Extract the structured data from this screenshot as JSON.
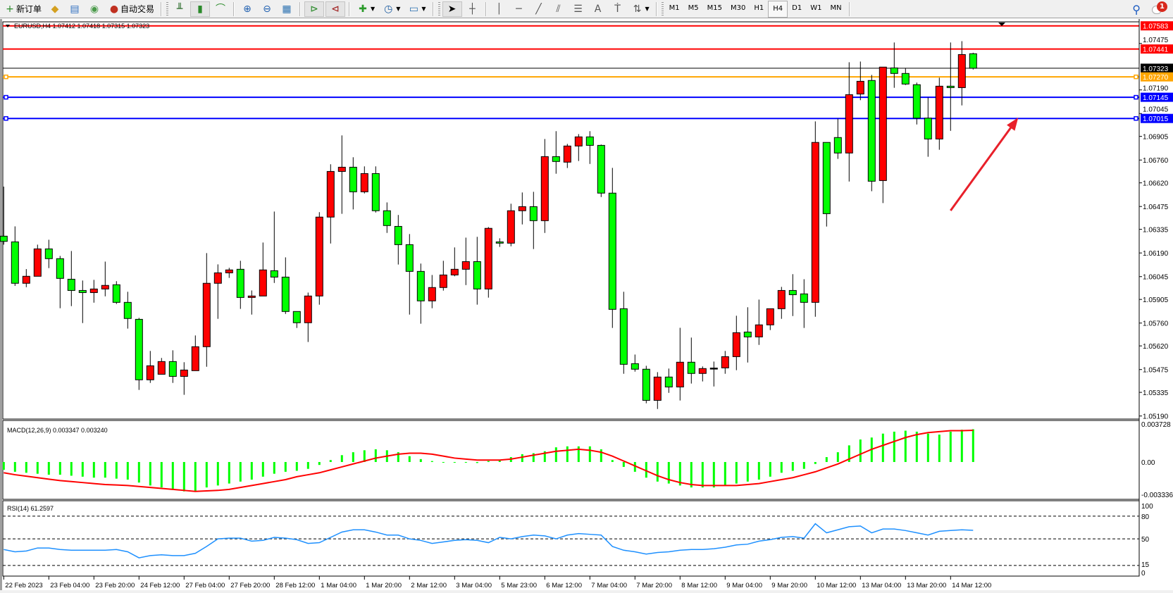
{
  "toolbar": {
    "new_order": "新订单",
    "auto_trading": "自动交易",
    "timeframes": [
      "M1",
      "M5",
      "M15",
      "M30",
      "H1",
      "H4",
      "D1",
      "W1",
      "MN"
    ],
    "active_timeframe": "H4",
    "notification_count": "1"
  },
  "chart": {
    "header": "EURUSD,H4  1.07412 1.07418 1.07315 1.07323",
    "macd_label": "MACD(12,26,9) 0.003347 0.003240",
    "rsi_label": "RSI(14) 61.2597",
    "colors": {
      "bull": "#ff0000",
      "bear": "#00ff00",
      "rsi": "#1e90ff",
      "macd_hist": "#00ff00",
      "macd_signal": "#ff0000",
      "arrow": "#e8202a"
    }
  },
  "chart_data": [
    {
      "type": "candlestick",
      "symbol": "EURUSD",
      "timeframe": "H4",
      "ylim": [
        1.0519,
        1.07583
      ],
      "price_ticks": [
        "1.07475",
        "1.07190",
        "1.07045",
        "1.06905",
        "1.06760",
        "1.06620",
        "1.06475",
        "1.06335",
        "1.06190",
        "1.06045",
        "1.05905",
        "1.05760",
        "1.05620",
        "1.05475",
        "1.05335",
        "1.05190"
      ],
      "time_labels": [
        "22 Feb 2023",
        "23 Feb 04:00",
        "23 Feb 20:00",
        "24 Feb 12:00",
        "27 Feb 04:00",
        "27 Feb 20:00",
        "28 Feb 12:00",
        "1 Mar 04:00",
        "1 Mar 20:00",
        "2 Mar 12:00",
        "3 Mar 04:00",
        "5 Mar 23:00",
        "6 Mar 12:00",
        "7 Mar 04:00",
        "7 Mar 20:00",
        "8 Mar 12:00",
        "9 Mar 04:00",
        "9 Mar 20:00",
        "10 Mar 12:00",
        "13 Mar 04:00",
        "13 Mar 20:00",
        "14 Mar 12:00"
      ],
      "ohlc": [
        [
          1.06293,
          1.06597,
          1.06241,
          1.06261
        ],
        [
          1.06258,
          1.06353,
          1.05988,
          1.06004
        ],
        [
          1.06004,
          1.06091,
          1.0598,
          1.06047
        ],
        [
          1.06047,
          1.06241,
          1.06047,
          1.06215
        ],
        [
          1.06215,
          1.06271,
          1.06097,
          1.06155
        ],
        [
          1.06155,
          1.06172,
          1.05851,
          1.06034
        ],
        [
          1.06029,
          1.06202,
          1.05864,
          1.0596
        ],
        [
          1.0596,
          1.06021,
          1.0576,
          1.05947
        ],
        [
          1.05947,
          1.06025,
          1.05885,
          1.05969
        ],
        [
          1.05969,
          1.06137,
          1.05924,
          1.05991
        ],
        [
          1.05995,
          1.06017,
          1.05877,
          1.05887
        ],
        [
          1.05887,
          1.05952,
          1.05726,
          1.05788
        ],
        [
          1.05783,
          1.05792,
          1.0535,
          1.05412
        ],
        [
          1.05412,
          1.05589,
          1.05393,
          1.05498
        ],
        [
          1.05446,
          1.05546,
          1.05446,
          1.05524
        ],
        [
          1.05524,
          1.05593,
          1.05393,
          1.05433
        ],
        [
          1.05433,
          1.0552,
          1.0532,
          1.05472
        ],
        [
          1.05468,
          1.05684,
          1.05468,
          1.05615
        ],
        [
          1.05615,
          1.06189,
          1.05492,
          1.06004
        ],
        [
          1.06004,
          1.0612,
          1.05786,
          1.06068
        ],
        [
          1.06068,
          1.06099,
          1.06037,
          1.06086
        ],
        [
          1.0609,
          1.06142,
          1.05847,
          1.05917
        ],
        [
          1.05917,
          1.0596,
          1.05812,
          1.05926
        ],
        [
          1.05926,
          1.06254,
          1.05926,
          1.06086
        ],
        [
          1.06081,
          1.06444,
          1.06006,
          1.06042
        ],
        [
          1.06042,
          1.06163,
          1.05816,
          1.05831
        ],
        [
          1.05831,
          1.05831,
          1.0573,
          1.05762
        ],
        [
          1.05762,
          1.05947,
          1.05644,
          1.05926
        ],
        [
          1.05926,
          1.0644,
          1.05873,
          1.0641
        ],
        [
          1.0641,
          1.06734,
          1.06248,
          1.0669
        ],
        [
          1.0669,
          1.06911,
          1.0643,
          1.06716
        ],
        [
          1.06716,
          1.06777,
          1.06457,
          1.06565
        ],
        [
          1.06565,
          1.06721,
          1.06555,
          1.06677
        ],
        [
          1.06677,
          1.06721,
          1.06438,
          1.06449
        ],
        [
          1.06449,
          1.065,
          1.06313,
          1.06358
        ],
        [
          1.06353,
          1.06423,
          1.06119,
          1.06241
        ],
        [
          1.06241,
          1.06306,
          1.05812,
          1.06077
        ],
        [
          1.06077,
          1.06125,
          1.05756,
          1.05896
        ],
        [
          1.05896,
          1.06055,
          1.05851,
          1.05978
        ],
        [
          1.05978,
          1.06142,
          1.05959,
          1.06055
        ],
        [
          1.06055,
          1.06224,
          1.06047,
          1.0609
        ],
        [
          1.0609,
          1.06284,
          1.05993,
          1.06137
        ],
        [
          1.06137,
          1.06289,
          1.05873,
          1.05969
        ],
        [
          1.05969,
          1.06349,
          1.05916,
          1.06341
        ],
        [
          1.06258,
          1.0628,
          1.06227,
          1.0625
        ],
        [
          1.0625,
          1.06492,
          1.06231,
          1.06449
        ],
        [
          1.06449,
          1.06561,
          1.06365,
          1.06474
        ],
        [
          1.06474,
          1.06565,
          1.06214,
          1.06388
        ],
        [
          1.06388,
          1.06889,
          1.06313,
          1.06781
        ],
        [
          1.06781,
          1.06937,
          1.06676,
          1.06751
        ],
        [
          1.06747,
          1.06859,
          1.06711,
          1.06846
        ],
        [
          1.06846,
          1.06919,
          1.06754,
          1.06902
        ],
        [
          1.06902,
          1.06937,
          1.06736,
          1.0685
        ],
        [
          1.0685,
          1.06855,
          1.06533,
          1.06557
        ],
        [
          1.06557,
          1.06712,
          1.0573,
          1.05844
        ],
        [
          1.05848,
          1.05952,
          1.05449,
          1.05507
        ],
        [
          1.05511,
          1.05567,
          1.05462,
          1.05477
        ],
        [
          1.05477,
          1.05498,
          1.05268,
          1.05286
        ],
        [
          1.05286,
          1.05459,
          1.05233,
          1.05429
        ],
        [
          1.05429,
          1.05481,
          1.05332,
          1.05368
        ],
        [
          1.05368,
          1.05731,
          1.05285,
          1.0552
        ],
        [
          1.0552,
          1.05671,
          1.05389,
          1.05451
        ],
        [
          1.05451,
          1.05494,
          1.05402,
          1.05481
        ],
        [
          1.05484,
          1.05524,
          1.05371,
          1.05484
        ],
        [
          1.05485,
          1.05589,
          1.05449,
          1.05554
        ],
        [
          1.05554,
          1.05805,
          1.05471,
          1.05701
        ],
        [
          1.05705,
          1.05857,
          1.05518,
          1.05675
        ],
        [
          1.05675,
          1.05904,
          1.05626,
          1.05749
        ],
        [
          1.05749,
          1.05848,
          1.05717,
          1.05848
        ],
        [
          1.05848,
          1.05982,
          1.05786,
          1.0596
        ],
        [
          1.0596,
          1.0606,
          1.05803,
          1.05934
        ],
        [
          1.05939,
          1.06029,
          1.0573,
          1.05887
        ],
        [
          1.05887,
          1.06997,
          1.05799,
          1.06868
        ],
        [
          1.06868,
          1.06868,
          1.06352,
          1.06431
        ],
        [
          1.06898,
          1.07014,
          1.06767,
          1.06803
        ],
        [
          1.06803,
          1.0736,
          1.06628,
          1.07161
        ],
        [
          1.07165,
          1.07364,
          1.07127,
          1.07243
        ],
        [
          1.07248,
          1.07282,
          1.06569,
          1.0663
        ],
        [
          1.06634,
          1.0733,
          1.06496,
          1.0733
        ],
        [
          1.07325,
          1.07481,
          1.07203,
          1.07291
        ],
        [
          1.07291,
          1.07325,
          1.0722,
          1.07226
        ],
        [
          1.07222,
          1.07235,
          1.06978,
          1.07017
        ],
        [
          1.07017,
          1.07144,
          1.0678,
          1.06889
        ],
        [
          1.06889,
          1.07265,
          1.06823,
          1.07213
        ],
        [
          1.07213,
          1.07481,
          1.06939,
          1.07204
        ],
        [
          1.07204,
          1.07489,
          1.07095,
          1.07407
        ],
        [
          1.07412,
          1.07418,
          1.07315,
          1.07323
        ]
      ],
      "hlines": [
        {
          "price": "1.07583",
          "color": "#ff0000",
          "text_color": "#ffffff",
          "handles": false
        },
        {
          "price": "1.07441",
          "color": "#ff0000",
          "text_color": "#ffffff",
          "handles": false
        },
        {
          "price": "1.07323",
          "color": "#000000",
          "text_color": "#ffffff",
          "handles": false,
          "bid": true
        },
        {
          "price": "1.07270",
          "color": "#ffa500",
          "text_color": "#ffffff",
          "handles": true
        },
        {
          "price": "1.07145",
          "color": "#0000ff",
          "text_color": "#ffffff",
          "handles": true
        },
        {
          "price": "1.07015",
          "color": "#0000ff",
          "text_color": "#ffffff",
          "handles": true
        }
      ],
      "annotation": {
        "type": "arrow",
        "from": {
          "bar": 84.0,
          "price": 1.0645
        },
        "to": {
          "bar": 90.0,
          "price": 1.0702
        },
        "color": "#e8202a"
      }
    },
    {
      "type": "bar+line",
      "name": "MACD(12,26,9)",
      "axis_labels": [
        "0.003728",
        "0.00",
        "-0.003336"
      ],
      "ylim": [
        -0.003336,
        0.003728
      ],
      "histogram": [
        -0.0008,
        -0.001,
        -0.0011,
        -0.0012,
        -0.0013,
        -0.0013,
        -0.0014,
        -0.0015,
        -0.0016,
        -0.0016,
        -0.0017,
        -0.0018,
        -0.0021,
        -0.0024,
        -0.0026,
        -0.0028,
        -0.003,
        -0.003,
        -0.0026,
        -0.0024,
        -0.0022,
        -0.002,
        -0.0018,
        -0.0015,
        -0.0012,
        -0.001,
        -0.0009,
        -0.0007,
        -0.0003,
        0.0002,
        0.0007,
        0.001,
        0.0012,
        0.0013,
        0.0012,
        0.001,
        0.0006,
        0.0003,
        0.0001,
        0.0,
        0.0,
        0.0,
        -0.0001,
        0.0001,
        0.0002,
        0.0005,
        0.0008,
        0.0009,
        0.0011,
        0.0015,
        0.0016,
        0.0016,
        0.0016,
        0.0013,
        0.0002,
        -0.0005,
        -0.001,
        -0.0016,
        -0.002,
        -0.0022,
        -0.0024,
        -0.0026,
        -0.0026,
        -0.0026,
        -0.0024,
        -0.0022,
        -0.002,
        -0.0018,
        -0.0015,
        -0.0011,
        -0.0009,
        -0.0007,
        -0.0002,
        0.0005,
        0.001,
        0.0017,
        0.0023,
        0.0025,
        0.0029,
        0.0031,
        0.0032,
        0.0031,
        0.0029,
        0.0028,
        0.0031,
        0.0033,
        0.003347
      ],
      "signal": [
        -0.0011,
        -0.0013,
        -0.00145,
        -0.0016,
        -0.00175,
        -0.0019,
        -0.002,
        -0.0021,
        -0.0022,
        -0.0023,
        -0.00235,
        -0.0024,
        -0.0025,
        -0.0026,
        -0.0027,
        -0.0028,
        -0.0029,
        -0.003,
        -0.00295,
        -0.0029,
        -0.0028,
        -0.0026,
        -0.0024,
        -0.0022,
        -0.002,
        -0.0018,
        -0.0015,
        -0.0013,
        -0.0011,
        -0.0008,
        -0.0005,
        -0.0002,
        0.0001,
        0.0004,
        0.0006,
        0.0008,
        0.0009,
        0.0009,
        0.0008,
        0.0006,
        0.0004,
        0.0003,
        0.0002,
        0.0002,
        0.0002,
        0.0003,
        0.0005,
        0.0007,
        0.0009,
        0.0011,
        0.0012,
        0.0013,
        0.0012,
        0.001,
        0.0006,
        0.0001,
        -0.0004,
        -0.0009,
        -0.0014,
        -0.0018,
        -0.0021,
        -0.0023,
        -0.0024,
        -0.0024,
        -0.0024,
        -0.0024,
        -0.0023,
        -0.0022,
        -0.002,
        -0.0018,
        -0.0016,
        -0.0013,
        -0.001,
        -0.0006,
        -0.0002,
        0.0003,
        0.0008,
        0.0013,
        0.0017,
        0.0021,
        0.0025,
        0.0028,
        0.003,
        0.0031,
        0.0032,
        0.0032,
        0.00324
      ]
    },
    {
      "type": "line",
      "name": "RSI(14)",
      "axis_labels": [
        "100",
        "80",
        "50",
        "15",
        "0"
      ],
      "levels": [
        80,
        50,
        15
      ],
      "ylim": [
        0,
        100
      ],
      "values": [
        36,
        33,
        34,
        38,
        38,
        36,
        35,
        35,
        35,
        35,
        36,
        33,
        25,
        28,
        29,
        28,
        28,
        31,
        40,
        50,
        51,
        51,
        47,
        48,
        52,
        51,
        49,
        44,
        45,
        52,
        59,
        62,
        62,
        59,
        55,
        55,
        50,
        48,
        44,
        46,
        48,
        49,
        48,
        45,
        52,
        50,
        53,
        55,
        54,
        50,
        55,
        57,
        56,
        55,
        40,
        35,
        33,
        30,
        32,
        33,
        35,
        36,
        36,
        37,
        39,
        42,
        43,
        47,
        49,
        52,
        53,
        51,
        70,
        58,
        62,
        66,
        67,
        58,
        63,
        63,
        61,
        58,
        55,
        60,
        61,
        62,
        61.2597
      ]
    }
  ]
}
